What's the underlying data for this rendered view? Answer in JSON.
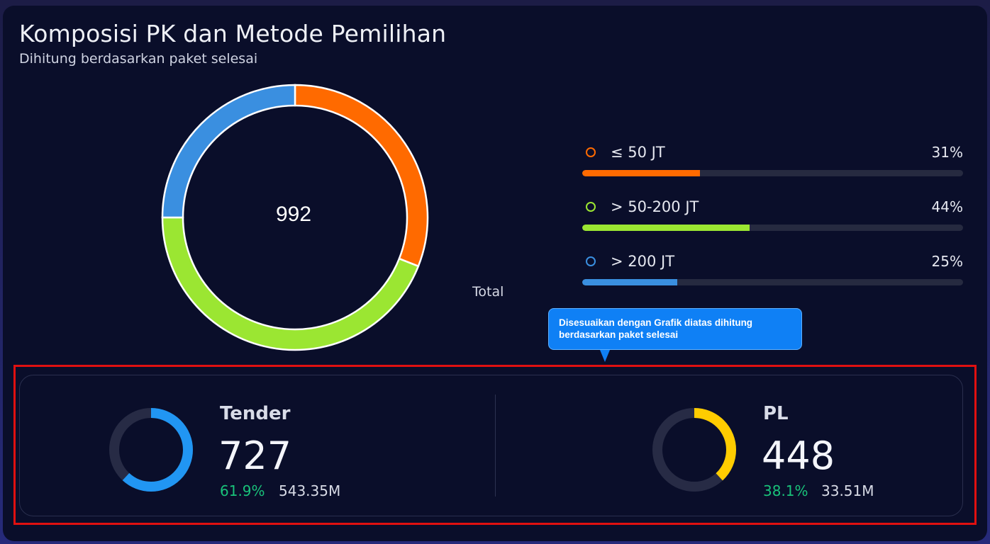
{
  "header": {
    "title": "Komposisi PK dan Metode Pemilihan",
    "subtitle": "Dihitung berdasarkan paket selesai"
  },
  "donut": {
    "total_value": "992",
    "total_label": "Total"
  },
  "legend": [
    {
      "label": "≤ 50 JT",
      "percent": "31%",
      "fraction": 0.31,
      "color": "#ff6a00"
    },
    {
      "label": "> 50-200 JT",
      "percent": "44%",
      "fraction": 0.44,
      "color": "#9be632"
    },
    {
      "label": "> 200 JT",
      "percent": "25%",
      "fraction": 0.25,
      "color": "#3a8fe0"
    }
  ],
  "tooltip": {
    "text": "Disesuaikan dengan Grafik diatas dihitung berdasarkan paket selesai"
  },
  "stats": {
    "tender": {
      "name": "Tender",
      "count": "727",
      "percent": "61.9%",
      "value": "543.35M",
      "fraction": 0.619,
      "color": "#2196f3"
    },
    "pl": {
      "name": "PL",
      "count": "448",
      "percent": "38.1%",
      "value": "33.51M",
      "fraction": 0.381,
      "color": "#ffcc00"
    }
  },
  "colors": {
    "background": "#0a0e2a",
    "track": "#262a40",
    "positive": "#19c27a",
    "highlight_border": "#e01010"
  }
}
